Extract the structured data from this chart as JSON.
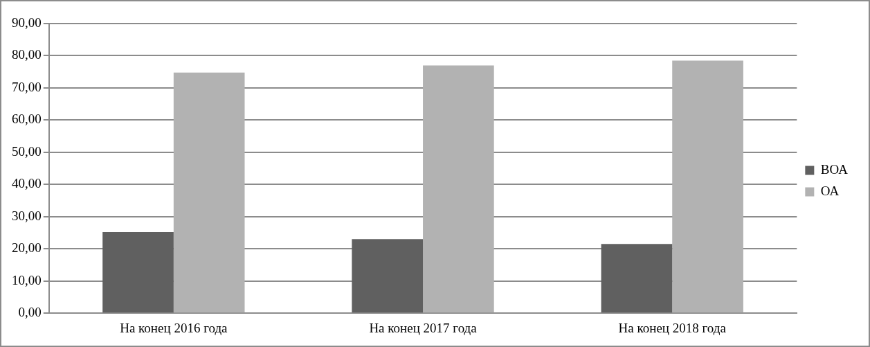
{
  "chart_data": {
    "type": "bar",
    "categories": [
      "На конец 2016 года",
      "На конец 2017 года",
      "На конец 2018 года"
    ],
    "series": [
      {
        "name": "ВОА",
        "color": "#606060",
        "values": [
          25.2,
          23.0,
          21.5
        ]
      },
      {
        "name": "ОА",
        "color": "#b2b2b2",
        "values": [
          74.8,
          77.0,
          78.5
        ]
      }
    ],
    "ylim": [
      0,
      90
    ],
    "yticks": [
      {
        "value": 0,
        "label": "0,00"
      },
      {
        "value": 10,
        "label": "10,00"
      },
      {
        "value": 20,
        "label": "20,00"
      },
      {
        "value": 30,
        "label": "30,00"
      },
      {
        "value": 40,
        "label": "40,00"
      },
      {
        "value": 50,
        "label": "50,00"
      },
      {
        "value": 60,
        "label": "60,00"
      },
      {
        "value": 70,
        "label": "70,00"
      },
      {
        "value": 80,
        "label": "80,00"
      },
      {
        "value": 90,
        "label": "90,00"
      }
    ],
    "grid": "y",
    "legend": "right"
  }
}
